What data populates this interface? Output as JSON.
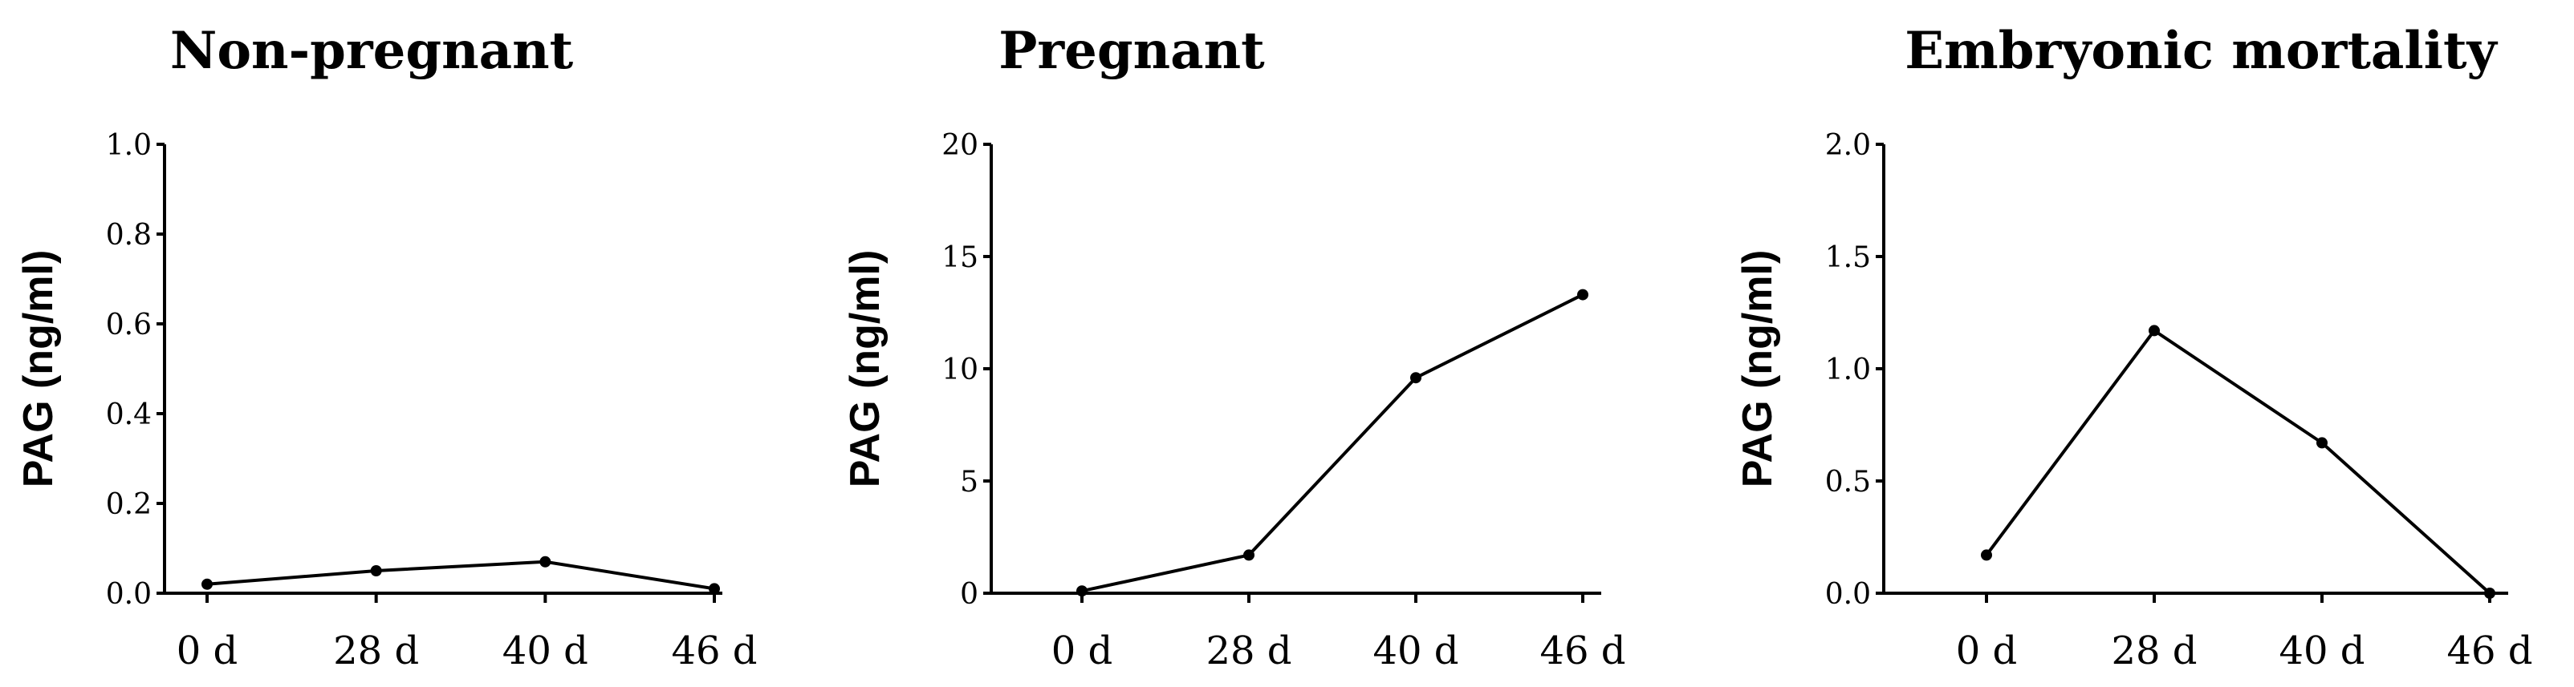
{
  "chart_data": [
    {
      "type": "line",
      "title": "Non-pregnant",
      "xlabel": "",
      "ylabel": "PAG (ng/ml)",
      "categories": [
        "0 d",
        "28 d",
        "40 d",
        "46 d"
      ],
      "ylim": [
        0,
        1.0
      ],
      "yticks": [
        "0.0",
        "0.2",
        "0.4",
        "0.6",
        "0.8",
        "1.0"
      ],
      "values": [
        0.02,
        0.05,
        0.07,
        0.01
      ],
      "grid": false
    },
    {
      "type": "line",
      "title": "Pregnant",
      "xlabel": "",
      "ylabel": "PAG (ng/ml)",
      "categories": [
        "0 d",
        "28 d",
        "40 d",
        "46 d"
      ],
      "ylim": [
        0,
        20
      ],
      "yticks": [
        "0",
        "5",
        "10",
        "15",
        "20"
      ],
      "values": [
        0.1,
        1.7,
        9.6,
        13.3
      ],
      "grid": false
    },
    {
      "type": "line",
      "title": "Embryonic mortality",
      "xlabel": "",
      "ylabel": "PAG (ng/ml)",
      "categories": [
        "0 d",
        "28 d",
        "40 d",
        "46 d"
      ],
      "ylim": [
        0,
        2.0
      ],
      "yticks": [
        "0.0",
        "0.5",
        "1.0",
        "1.5",
        "2.0"
      ],
      "values": [
        0.17,
        1.17,
        0.67,
        0.0
      ],
      "grid": false
    }
  ]
}
